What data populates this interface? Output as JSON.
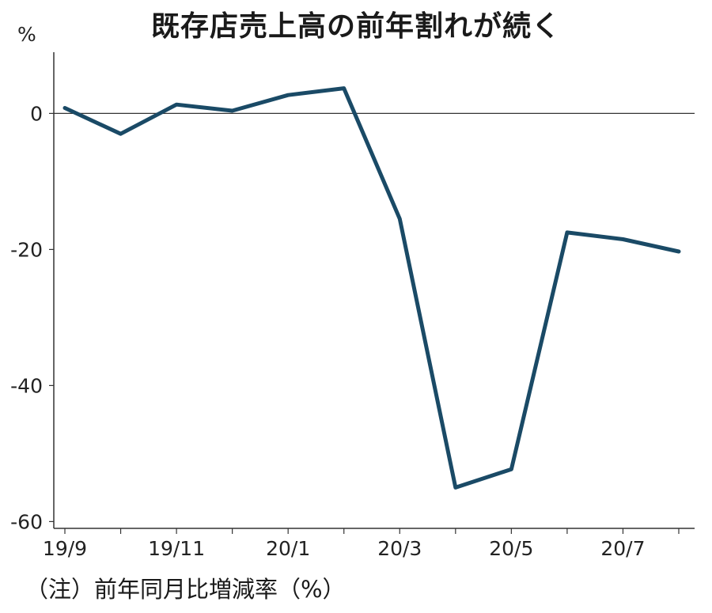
{
  "chart_data": {
    "type": "line",
    "title": "既存店売上高の前年割れが続く",
    "ylabel": "%",
    "note": "（注）前年同月比増減率（%）",
    "x": [
      "19/9",
      "19/10",
      "19/11",
      "19/12",
      "20/1",
      "20/2",
      "20/3",
      "20/4",
      "20/5",
      "20/6",
      "20/7",
      "20/8"
    ],
    "x_tick_labels": [
      "19/9",
      "19/11",
      "20/1",
      "20/3",
      "20/5",
      "20/7"
    ],
    "ylim": [
      -61,
      9
    ],
    "y_ticks": [
      0,
      -20,
      -40,
      -60
    ],
    "y_tick_labels": [
      "0",
      "-20",
      "-40",
      "-60"
    ],
    "series": [
      {
        "values": [
          0.8,
          -3.0,
          1.3,
          0.4,
          2.7,
          3.7,
          -15.5,
          -55.0,
          -52.3,
          -17.5,
          -18.5,
          -20.3
        ],
        "color": "#1a4a66"
      }
    ],
    "zero_line_color": "#333333",
    "grid": false
  }
}
